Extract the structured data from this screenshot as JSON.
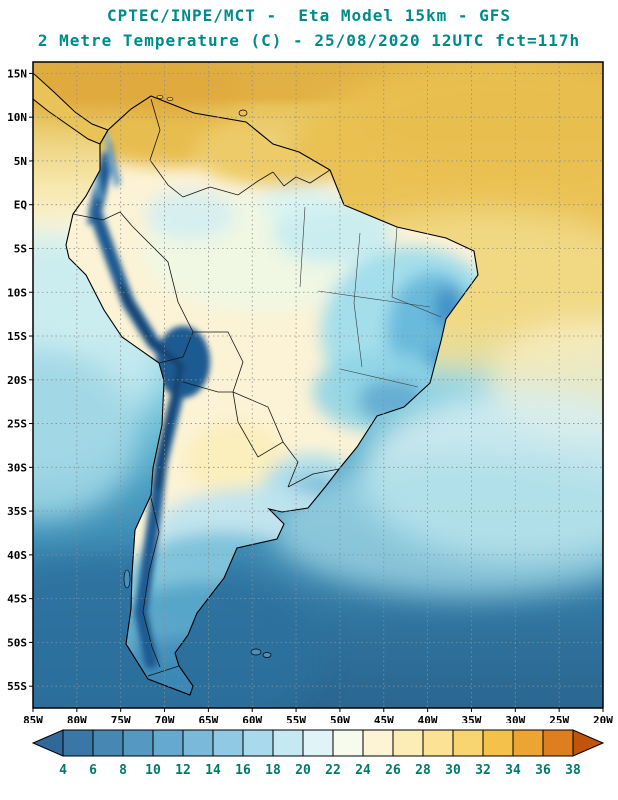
{
  "header": {
    "line1": "CPTEC/INPE/MCT -  Eta Model 15km - GFS",
    "line2": "2 Metre Temperature (C) - 25/08/2020 12UTC fct=117h",
    "title_color": "#008b8b"
  },
  "axes": {
    "lat_labels": [
      "15N",
      "10N",
      "5N",
      "EQ",
      "5S",
      "10S",
      "15S",
      "20S",
      "25S",
      "30S",
      "35S",
      "40S",
      "45S",
      "50S",
      "55S"
    ],
    "lon_labels": [
      "85W",
      "80W",
      "75W",
      "70W",
      "65W",
      "60W",
      "55W",
      "50W",
      "45W",
      "40W",
      "35W",
      "30W",
      "25W",
      "20W"
    ],
    "label_color": "#000000"
  },
  "colorbar": {
    "tick_labels": [
      "4",
      "6",
      "8",
      "10",
      "12",
      "14",
      "16",
      "18",
      "20",
      "22",
      "24",
      "26",
      "28",
      "30",
      "32",
      "34",
      "36",
      "38"
    ],
    "segment_colors": [
      "#30689a",
      "#3a77a7",
      "#4687b4",
      "#5598c2",
      "#66a9ce",
      "#7ab9d9",
      "#90c9e3",
      "#a9daec",
      "#c4e9f2",
      "#e0f4f7",
      "#f6fbee",
      "#fdf4d5",
      "#fcecb6",
      "#fbe294",
      "#f8d570",
      "#f4c24b",
      "#eca433",
      "#dd7f1e",
      "#c1530c"
    ],
    "tick_color": "#00796b"
  },
  "field_colors": {
    "warm_ocean": "#e9c050",
    "cream_land": "#fcf3d6",
    "cool_patch": "#9fdcec",
    "andes_cold": "#1e5a92",
    "south_ocean": "#2a6690"
  }
}
